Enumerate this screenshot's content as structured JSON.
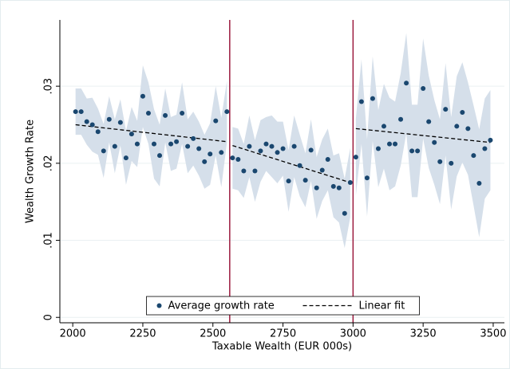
{
  "chart_data": {
    "type": "scatter",
    "xlabel": "Taxable Wealth (EUR 000s)",
    "ylabel": "Wealth Growth Rate",
    "xlim": [
      1954,
      3540
    ],
    "ylim": [
      -0.0007,
      0.0386
    ],
    "xticks": [
      2000,
      2250,
      2500,
      2750,
      3000,
      3250,
      3500
    ],
    "yticks": [
      0,
      {
        "value": 0.01,
        "label": ".01"
      },
      {
        "value": 0.02,
        "label": ".02"
      },
      {
        "value": 0.03,
        "label": ".03"
      }
    ],
    "grid": true,
    "legend": "bottom",
    "vlines": [
      2560,
      3000
    ],
    "vline_color": "#9c1c3f",
    "band_color": "#d5dfea",
    "series": [
      {
        "name": "Average growth rate",
        "color": "#1a476f",
        "x": [
          2010,
          2030,
          2050,
          2070,
          2090,
          2110,
          2130,
          2150,
          2170,
          2190,
          2210,
          2230,
          2250,
          2270,
          2290,
          2310,
          2330,
          2350,
          2370,
          2390,
          2410,
          2430,
          2450,
          2470,
          2490,
          2510,
          2530,
          2550,
          2570,
          2590,
          2610,
          2630,
          2650,
          2670,
          2690,
          2710,
          2730,
          2750,
          2770,
          2790,
          2810,
          2830,
          2850,
          2870,
          2890,
          2910,
          2930,
          2950,
          2970,
          2990,
          3010,
          3030,
          3050,
          3070,
          3090,
          3110,
          3130,
          3150,
          3170,
          3190,
          3210,
          3230,
          3250,
          3270,
          3290,
          3310,
          3330,
          3350,
          3370,
          3390,
          3410,
          3430,
          3450,
          3470,
          3490
        ],
        "values": [
          0.0267,
          0.0267,
          0.0254,
          0.025,
          0.0241,
          0.0216,
          0.0257,
          0.0222,
          0.0253,
          0.0207,
          0.0238,
          0.0225,
          0.0287,
          0.0265,
          0.0225,
          0.021,
          0.0262,
          0.0225,
          0.0228,
          0.0265,
          0.0222,
          0.0232,
          0.0219,
          0.0202,
          0.0212,
          0.0255,
          0.0214,
          0.0267,
          0.0207,
          0.0205,
          0.019,
          0.0222,
          0.019,
          0.0216,
          0.0225,
          0.0222,
          0.0214,
          0.0219,
          0.0177,
          0.0222,
          0.0197,
          0.0178,
          0.0217,
          0.0168,
          0.0191,
          0.0205,
          0.017,
          0.0168,
          0.0135,
          0.0175,
          0.0208,
          0.028,
          0.0181,
          0.0284,
          0.0219,
          0.0248,
          0.0225,
          0.0225,
          0.0257,
          0.0304,
          0.0216,
          0.0216,
          0.0297,
          0.0254,
          0.0227,
          0.0202,
          0.027,
          0.02,
          0.0248,
          0.0266,
          0.0245,
          0.021,
          0.0174,
          0.0219,
          0.023
        ],
        "errors": [
          0.003,
          0.003,
          0.003,
          0.0035,
          0.003,
          0.0035,
          0.003,
          0.0035,
          0.003,
          0.0035,
          0.0035,
          0.003,
          0.004,
          0.004,
          0.0045,
          0.004,
          0.0035,
          0.0035,
          0.0035,
          0.004,
          0.0035,
          0.0035,
          0.0035,
          0.0035,
          0.004,
          0.0045,
          0.0045,
          0.004,
          0.004,
          0.004,
          0.0035,
          0.004,
          0.004,
          0.004,
          0.0035,
          0.004,
          0.004,
          0.0035,
          0.004,
          0.004,
          0.004,
          0.0035,
          0.004,
          0.004,
          0.004,
          0.004,
          0.004,
          0.0045,
          0.0045,
          0.0045,
          0.005,
          0.0055,
          0.005,
          0.0055,
          0.005,
          0.0055,
          0.006,
          0.0055,
          0.006,
          0.0065,
          0.006,
          0.006,
          0.0065,
          0.006,
          0.0055,
          0.0055,
          0.006,
          0.006,
          0.0065,
          0.0065,
          0.006,
          0.0065,
          0.007,
          0.0065,
          0.0065
        ]
      },
      {
        "name": "Linear fit",
        "color": "#000000",
        "x": [
          2010,
          2550,
          2560,
          2570,
          2990,
          3000,
          3010,
          3490
        ],
        "values": [
          0.025,
          0.0228,
          null,
          0.0223,
          0.0175,
          null,
          0.0245,
          0.0227
        ]
      }
    ]
  }
}
